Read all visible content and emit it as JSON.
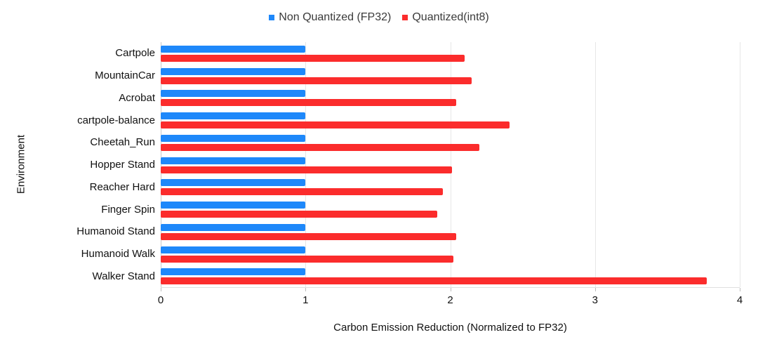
{
  "chart_data": {
    "type": "bar",
    "orientation": "horizontal",
    "categories": [
      "Cartpole",
      "MountainCar",
      "Acrobat",
      "cartpole-balance",
      "Cheetah_Run",
      "Hopper Stand",
      "Reacher Hard",
      "Finger Spin",
      "Humanoid Stand",
      "Humanoid Walk",
      "Walker Stand"
    ],
    "series": [
      {
        "name": "Non Quantized (FP32)",
        "color": "#1e88fa",
        "values": [
          1.0,
          1.0,
          1.0,
          1.0,
          1.0,
          1.0,
          1.0,
          1.0,
          1.0,
          1.0,
          1.0
        ]
      },
      {
        "name": "Quantized(int8)",
        "color": "#fb2c2c",
        "values": [
          2.1,
          2.15,
          2.04,
          2.41,
          2.2,
          2.01,
          1.95,
          1.91,
          2.04,
          2.02,
          3.77
        ]
      }
    ],
    "xlabel": "Carbon Emission Reduction (Normalized to FP32)",
    "ylabel": "Environment",
    "xlim": [
      0,
      4
    ],
    "xticks": [
      0,
      1,
      2,
      3,
      4
    ],
    "grid": "vertical",
    "legend_position": "top",
    "colors": {
      "gridline": "#e6e6e6",
      "axis_line": "#c9c9c9",
      "text": "#111111",
      "legend_text": "#3a3a3a"
    }
  }
}
